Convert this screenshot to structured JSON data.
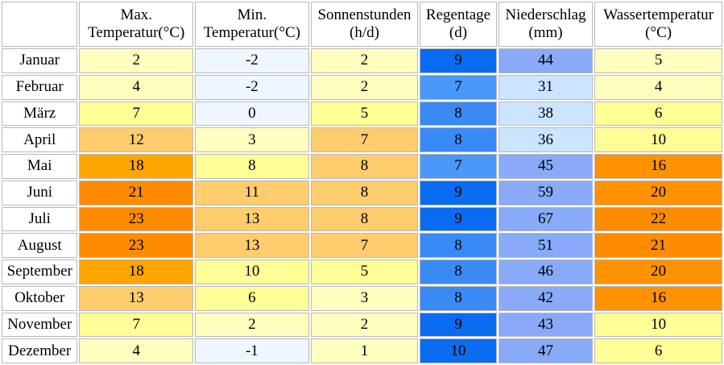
{
  "table": {
    "headers": [
      {
        "line1": "Max.",
        "line2": "Temperatur(°C)"
      },
      {
        "line1": "Min.",
        "line2": "Temperatur(°C)"
      },
      {
        "line1": "Sonnenstunden",
        "line2": "(h/d)"
      },
      {
        "line1": "Regentage",
        "line2": "(d)"
      },
      {
        "line1": "Niederschlag",
        "line2": "(mm)"
      },
      {
        "line1": "Wassertemperatur",
        "line2": "(°C)"
      }
    ],
    "rows": [
      {
        "month": "Januar",
        "cells": [
          {
            "v": "2",
            "bg": "#ffffc0"
          },
          {
            "v": "-2",
            "bg": "#eef6ff"
          },
          {
            "v": "2",
            "bg": "#ffffc0"
          },
          {
            "v": "9",
            "bg": "#0a6cf0"
          },
          {
            "v": "44",
            "bg": "#88aaf8"
          },
          {
            "v": "5",
            "bg": "#ffffc0"
          }
        ]
      },
      {
        "month": "Februar",
        "cells": [
          {
            "v": "4",
            "bg": "#ffffc0"
          },
          {
            "v": "-2",
            "bg": "#eef6ff"
          },
          {
            "v": "2",
            "bg": "#ffffc0"
          },
          {
            "v": "7",
            "bg": "#4a98f8"
          },
          {
            "v": "31",
            "bg": "#cce4ff"
          },
          {
            "v": "4",
            "bg": "#ffffc0"
          }
        ]
      },
      {
        "month": "März",
        "cells": [
          {
            "v": "7",
            "bg": "#ffff96"
          },
          {
            "v": "0",
            "bg": "#eef6ff"
          },
          {
            "v": "5",
            "bg": "#ffff96"
          },
          {
            "v": "8",
            "bg": "#3a8af6"
          },
          {
            "v": "38",
            "bg": "#cce4ff"
          },
          {
            "v": "6",
            "bg": "#ffff96"
          }
        ]
      },
      {
        "month": "April",
        "cells": [
          {
            "v": "12",
            "bg": "#ffcc6e"
          },
          {
            "v": "3",
            "bg": "#ffffc0"
          },
          {
            "v": "7",
            "bg": "#ffcc6e"
          },
          {
            "v": "8",
            "bg": "#3a8af6"
          },
          {
            "v": "36",
            "bg": "#cce4ff"
          },
          {
            "v": "10",
            "bg": "#ffff96"
          }
        ]
      },
      {
        "month": "Mai",
        "cells": [
          {
            "v": "18",
            "bg": "#ffa600"
          },
          {
            "v": "8",
            "bg": "#ffff96"
          },
          {
            "v": "8",
            "bg": "#ffcc6e"
          },
          {
            "v": "7",
            "bg": "#4a98f8"
          },
          {
            "v": "45",
            "bg": "#88aaf8"
          },
          {
            "v": "16",
            "bg": "#ff9200"
          }
        ]
      },
      {
        "month": "Juni",
        "cells": [
          {
            "v": "21",
            "bg": "#ff8c00"
          },
          {
            "v": "11",
            "bg": "#ffcc6e"
          },
          {
            "v": "8",
            "bg": "#ffcc6e"
          },
          {
            "v": "9",
            "bg": "#0a6cf0"
          },
          {
            "v": "59",
            "bg": "#88aaf8"
          },
          {
            "v": "20",
            "bg": "#ff9200"
          }
        ]
      },
      {
        "month": "Juli",
        "cells": [
          {
            "v": "23",
            "bg": "#ff8c00"
          },
          {
            "v": "13",
            "bg": "#ffcc6e"
          },
          {
            "v": "8",
            "bg": "#ffcc6e"
          },
          {
            "v": "9",
            "bg": "#0a6cf0"
          },
          {
            "v": "67",
            "bg": "#88aaf8"
          },
          {
            "v": "22",
            "bg": "#ff8c00"
          }
        ]
      },
      {
        "month": "August",
        "cells": [
          {
            "v": "23",
            "bg": "#ff8c00"
          },
          {
            "v": "13",
            "bg": "#ffcc6e"
          },
          {
            "v": "7",
            "bg": "#ffcc6e"
          },
          {
            "v": "8",
            "bg": "#3a8af6"
          },
          {
            "v": "51",
            "bg": "#88aaf8"
          },
          {
            "v": "21",
            "bg": "#ff8c00"
          }
        ]
      },
      {
        "month": "September",
        "cells": [
          {
            "v": "18",
            "bg": "#ffa600"
          },
          {
            "v": "10",
            "bg": "#ffff96"
          },
          {
            "v": "5",
            "bg": "#ffff96"
          },
          {
            "v": "8",
            "bg": "#3a8af6"
          },
          {
            "v": "46",
            "bg": "#88aaf8"
          },
          {
            "v": "20",
            "bg": "#ff9200"
          }
        ]
      },
      {
        "month": "Oktober",
        "cells": [
          {
            "v": "13",
            "bg": "#ffcc6e"
          },
          {
            "v": "6",
            "bg": "#ffff96"
          },
          {
            "v": "3",
            "bg": "#ffffc0"
          },
          {
            "v": "8",
            "bg": "#3a8af6"
          },
          {
            "v": "42",
            "bg": "#88aaf8"
          },
          {
            "v": "16",
            "bg": "#ff9200"
          }
        ]
      },
      {
        "month": "November",
        "cells": [
          {
            "v": "7",
            "bg": "#ffff96"
          },
          {
            "v": "2",
            "bg": "#ffffc0"
          },
          {
            "v": "2",
            "bg": "#ffffc0"
          },
          {
            "v": "9",
            "bg": "#0a6cf0"
          },
          {
            "v": "43",
            "bg": "#88aaf8"
          },
          {
            "v": "10",
            "bg": "#ffff96"
          }
        ]
      },
      {
        "month": "Dezember",
        "cells": [
          {
            "v": "4",
            "bg": "#ffffc0"
          },
          {
            "v": "-1",
            "bg": "#eef6ff"
          },
          {
            "v": "1",
            "bg": "#ffffc0"
          },
          {
            "v": "10",
            "bg": "#0a6cf0"
          },
          {
            "v": "47",
            "bg": "#88aaf8"
          },
          {
            "v": "6",
            "bg": "#ffff96"
          }
        ]
      }
    ]
  }
}
